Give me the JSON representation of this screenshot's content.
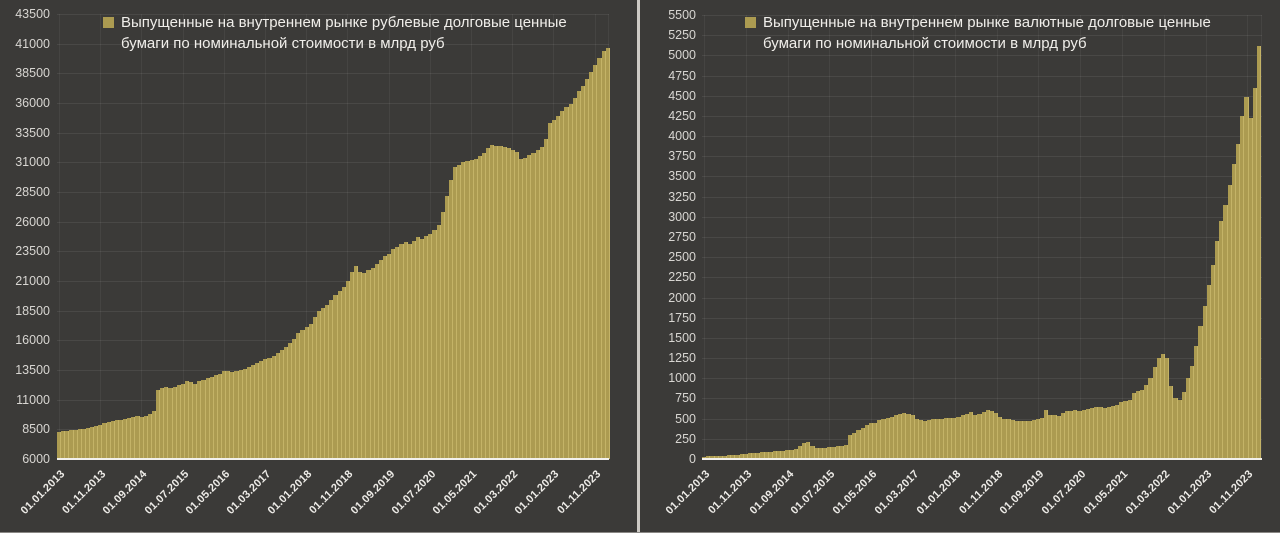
{
  "page": {
    "background_color": "#3b3a38",
    "bar_color": "#ac9b51",
    "divider_color": "#ccc9c4"
  },
  "chart_data": [
    {
      "type": "bar",
      "legend": "Выпущенные на внутреннем рынке рублевые долговые ценные бумаги по номинальной стоимости в млрд руб",
      "unit": "млрд руб",
      "frequency": "monthly",
      "x_start": "01.01.2013",
      "x_end": "01.02.2024",
      "x_tick_interval": 10,
      "x_tick_labels": [
        "01.01.2013",
        "01.11.2013",
        "01.09.2014",
        "01.07.2015",
        "01.05.2016",
        "01.03.2017",
        "01.01.2018",
        "01.11.2018",
        "01.09.2019",
        "01.07.2020",
        "01.05.2021",
        "01.03.2022",
        "01.01.2023",
        "01.11.2023"
      ],
      "ylim": [
        6000,
        43500
      ],
      "y_step": 2500,
      "grid": true,
      "legend_position": "top-left",
      "values": [
        8300,
        8350,
        8400,
        8430,
        8470,
        8520,
        8570,
        8630,
        8700,
        8800,
        8900,
        9050,
        9150,
        9230,
        9300,
        9280,
        9350,
        9430,
        9530,
        9600,
        9570,
        9620,
        9800,
        10050,
        11800,
        11950,
        12050,
        12000,
        12100,
        12200,
        12350,
        12600,
        12450,
        12300,
        12550,
        12650,
        12800,
        12900,
        13050,
        13200,
        13400,
        13450,
        13350,
        13400,
        13500,
        13600,
        13750,
        13900,
        14100,
        14250,
        14400,
        14550,
        14700,
        14900,
        15150,
        15450,
        15750,
        16100,
        16600,
        16900,
        17100,
        17400,
        18000,
        18500,
        18700,
        19000,
        19400,
        19800,
        20200,
        20500,
        21000,
        21800,
        22300,
        21800,
        21700,
        21900,
        22100,
        22400,
        22800,
        23100,
        23300,
        23700,
        23900,
        24100,
        24300,
        24100,
        24400,
        24700,
        24500,
        24800,
        25000,
        25300,
        25700,
        26800,
        28200,
        29500,
        30600,
        30800,
        31000,
        31100,
        31200,
        31300,
        31500,
        31800,
        32200,
        32450,
        32400,
        32350,
        32300,
        32200,
        32000,
        31900,
        31250,
        31400,
        31600,
        31800,
        32000,
        32300,
        33000,
        34300,
        34600,
        34900,
        35300,
        35700,
        35900,
        36400,
        37000,
        37400,
        38000,
        38600,
        39200,
        39800,
        40400,
        40650
      ]
    },
    {
      "type": "bar",
      "legend": "Выпущенные на внутреннем рынке валютные долговые ценные бумаги по номинальной стоимости в млрд руб",
      "unit": "млрд руб",
      "frequency": "monthly",
      "x_start": "01.01.2013",
      "x_end": "01.02.2024",
      "x_tick_interval": 10,
      "x_tick_labels": [
        "01.01.2013",
        "01.11.2013",
        "01.09.2014",
        "01.07.2015",
        "01.05.2016",
        "01.03.2017",
        "01.01.2018",
        "01.11.2018",
        "01.09.2019",
        "01.07.2020",
        "01.05.2021",
        "01.03.2022",
        "01.01.2023",
        "01.11.2023"
      ],
      "ylim": [
        0,
        5500
      ],
      "y_step": 250,
      "grid": true,
      "legend_position": "top-left",
      "values": [
        30,
        32,
        35,
        37,
        40,
        42,
        45,
        50,
        55,
        60,
        65,
        70,
        75,
        80,
        85,
        88,
        92,
        95,
        100,
        105,
        108,
        112,
        130,
        160,
        200,
        210,
        160,
        140,
        135,
        140,
        150,
        155,
        160,
        165,
        170,
        300,
        320,
        360,
        380,
        420,
        440,
        445,
        480,
        500,
        505,
        520,
        540,
        555,
        570,
        560,
        545,
        500,
        480,
        470,
        480,
        490,
        495,
        500,
        505,
        510,
        505,
        520,
        545,
        560,
        580,
        545,
        560,
        580,
        605,
        590,
        570,
        520,
        500,
        490,
        480,
        470,
        465,
        470,
        475,
        480,
        500,
        505,
        605,
        550,
        540,
        530,
        570,
        590,
        600,
        610,
        590,
        605,
        620,
        630,
        640,
        645,
        630,
        645,
        660,
        670,
        705,
        720,
        730,
        815,
        845,
        855,
        915,
        1000,
        1140,
        1250,
        1300,
        1250,
        900,
        760,
        730,
        830,
        1000,
        1150,
        1400,
        1650,
        1900,
        2150,
        2400,
        2700,
        2950,
        3150,
        3400,
        3650,
        3900,
        4250,
        4480,
        4230,
        4600,
        5120
      ]
    }
  ]
}
